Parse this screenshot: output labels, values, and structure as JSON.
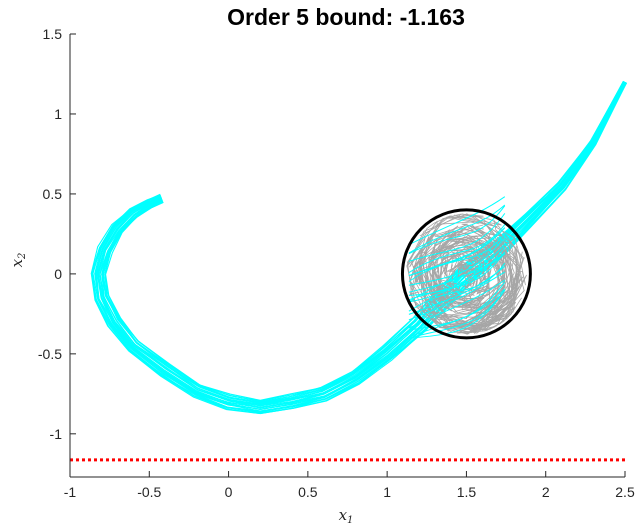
{
  "chart_data": {
    "type": "line",
    "title": "Order 5 bound: -1.163",
    "xlabel": "x",
    "xlabel_sub": "1",
    "ylabel": "x",
    "ylabel_sub": "2",
    "xlim": [
      -1,
      2.5
    ],
    "ylim": [
      -1.27,
      1.5
    ],
    "x_ticks": [
      -1,
      -0.5,
      0,
      0.5,
      1,
      1.5,
      2,
      2.5
    ],
    "x_tick_labels": [
      "-1",
      "-0.5",
      "0",
      "0.5",
      "1",
      "1.5",
      "2",
      "2.5"
    ],
    "y_ticks": [
      -1,
      -0.5,
      0,
      0.5,
      1,
      1.5
    ],
    "y_tick_labels": [
      "-1",
      "-0.5",
      "0",
      "0.5",
      "1",
      "1.5"
    ],
    "grid": false,
    "bound_line": {
      "y": -1.163,
      "color": "#ff0000",
      "style": "dotted"
    },
    "target_circle": {
      "center": [
        1.5,
        0.0
      ],
      "radius": 0.4,
      "color": "#000000"
    },
    "trajectory_color": "#00ffff",
    "cloud_color": "#a6a6a6",
    "trajectory_spine": [
      [
        2.5,
        1.2
      ],
      [
        2.3,
        0.82
      ],
      [
        2.1,
        0.55
      ],
      [
        1.9,
        0.35
      ],
      [
        1.7,
        0.15
      ],
      [
        1.5,
        0.0
      ],
      [
        1.35,
        -0.15
      ],
      [
        1.2,
        -0.32
      ],
      [
        1.0,
        -0.5
      ],
      [
        0.8,
        -0.65
      ],
      [
        0.6,
        -0.75
      ],
      [
        0.4,
        -0.8
      ],
      [
        0.2,
        -0.83
      ],
      [
        0.0,
        -0.8
      ],
      [
        -0.2,
        -0.73
      ],
      [
        -0.4,
        -0.6
      ],
      [
        -0.6,
        -0.45
      ],
      [
        -0.72,
        -0.3
      ],
      [
        -0.8,
        -0.15
      ],
      [
        -0.82,
        0.0
      ],
      [
        -0.78,
        0.15
      ],
      [
        -0.7,
        0.28
      ],
      [
        -0.6,
        0.38
      ],
      [
        -0.5,
        0.44
      ],
      [
        -0.42,
        0.47
      ]
    ],
    "trajectory_half_width": [
      0.01,
      0.02,
      0.03,
      0.04,
      0.05,
      0.06,
      0.06,
      0.055,
      0.05,
      0.045,
      0.045,
      0.045,
      0.045,
      0.045,
      0.045,
      0.045,
      0.045,
      0.045,
      0.045,
      0.045,
      0.045,
      0.04,
      0.035,
      0.03,
      0.025
    ]
  }
}
